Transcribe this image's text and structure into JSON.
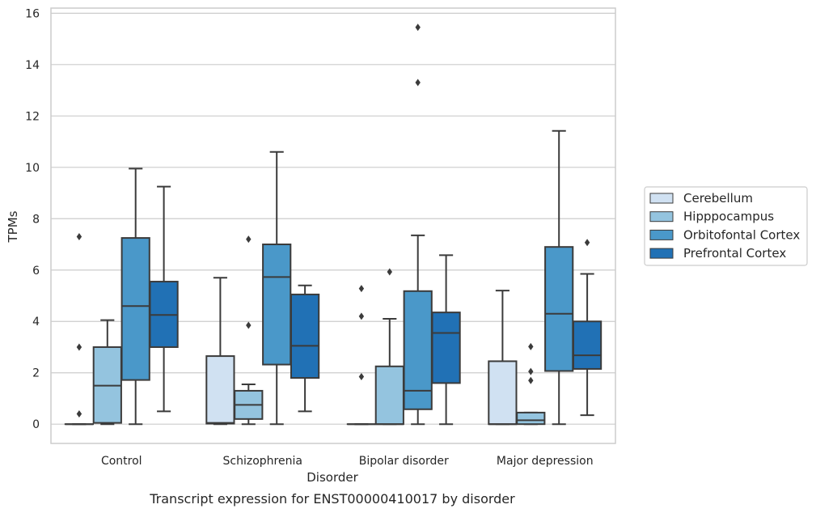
{
  "chart_data": {
    "type": "box",
    "caption": "Transcript expression for ENST00000410017 by disorder",
    "xlabel": "Disorder",
    "ylabel": "TPMs",
    "ylim": [
      -0.75,
      16.2
    ],
    "yticks": [
      0,
      2,
      4,
      6,
      8,
      10,
      12,
      14,
      16
    ],
    "grid": true,
    "legend_position": "right",
    "categories": [
      "Control",
      "Schizophrenia",
      "Bipolar disorder",
      "Major depression"
    ],
    "series": [
      {
        "name": "Cerebellum",
        "color": "#d0e1f2",
        "boxes": [
          {
            "whislo": 0,
            "q1": 0,
            "med": 0,
            "q3": 0,
            "whishi": 0,
            "fliers": [
              0.4,
              3.0,
              7.3
            ]
          },
          {
            "whislo": 0,
            "q1": 0.02,
            "med": 0.05,
            "q3": 2.65,
            "whishi": 5.7,
            "fliers": []
          },
          {
            "whislo": 0,
            "q1": 0,
            "med": 0,
            "q3": 0,
            "whishi": 0,
            "fliers": [
              1.85,
              4.2,
              5.28
            ]
          },
          {
            "whislo": 0,
            "q1": 0,
            "med": 0,
            "q3": 2.45,
            "whishi": 5.2,
            "fliers": []
          }
        ]
      },
      {
        "name": "Hipppocampus",
        "color": "#94c4df",
        "boxes": [
          {
            "whislo": 0,
            "q1": 0.05,
            "med": 1.5,
            "q3": 3.0,
            "whishi": 4.05,
            "fliers": []
          },
          {
            "whislo": 0,
            "q1": 0.2,
            "med": 0.75,
            "q3": 1.3,
            "whishi": 1.55,
            "fliers": [
              3.85,
              7.2
            ]
          },
          {
            "whislo": 0,
            "q1": 0,
            "med": 0,
            "q3": 2.25,
            "whishi": 4.1,
            "fliers": [
              5.93
            ]
          },
          {
            "whislo": 0,
            "q1": 0,
            "med": 0.15,
            "q3": 0.45,
            "whishi": 0.45,
            "fliers": [
              1.7,
              2.05,
              3.02
            ]
          }
        ]
      },
      {
        "name": "Orbitofontal Cortex",
        "color": "#4a98c9",
        "boxes": [
          {
            "whislo": 0,
            "q1": 1.72,
            "med": 4.6,
            "q3": 7.25,
            "whishi": 9.95,
            "fliers": []
          },
          {
            "whislo": 0,
            "q1": 2.32,
            "med": 5.73,
            "q3": 7.0,
            "whishi": 10.6,
            "fliers": []
          },
          {
            "whislo": 0,
            "q1": 0.58,
            "med": 1.3,
            "q3": 5.18,
            "whishi": 7.35,
            "fliers": [
              13.3,
              15.45
            ]
          },
          {
            "whislo": 0,
            "q1": 2.07,
            "med": 4.3,
            "q3": 6.9,
            "whishi": 11.42,
            "fliers": []
          }
        ]
      },
      {
        "name": "Prefrontal Cortex",
        "color": "#2171b5",
        "boxes": [
          {
            "whislo": 0.5,
            "q1": 3.0,
            "med": 4.25,
            "q3": 5.55,
            "whishi": 9.25,
            "fliers": []
          },
          {
            "whislo": 0.5,
            "q1": 1.8,
            "med": 3.05,
            "q3": 5.05,
            "whishi": 5.4,
            "fliers": []
          },
          {
            "whislo": 0,
            "q1": 1.6,
            "med": 3.55,
            "q3": 4.35,
            "whishi": 6.58,
            "fliers": []
          },
          {
            "whislo": 0.35,
            "q1": 2.15,
            "med": 2.68,
            "q3": 4.0,
            "whishi": 5.85,
            "fliers": [
              7.07
            ]
          }
        ]
      }
    ]
  }
}
